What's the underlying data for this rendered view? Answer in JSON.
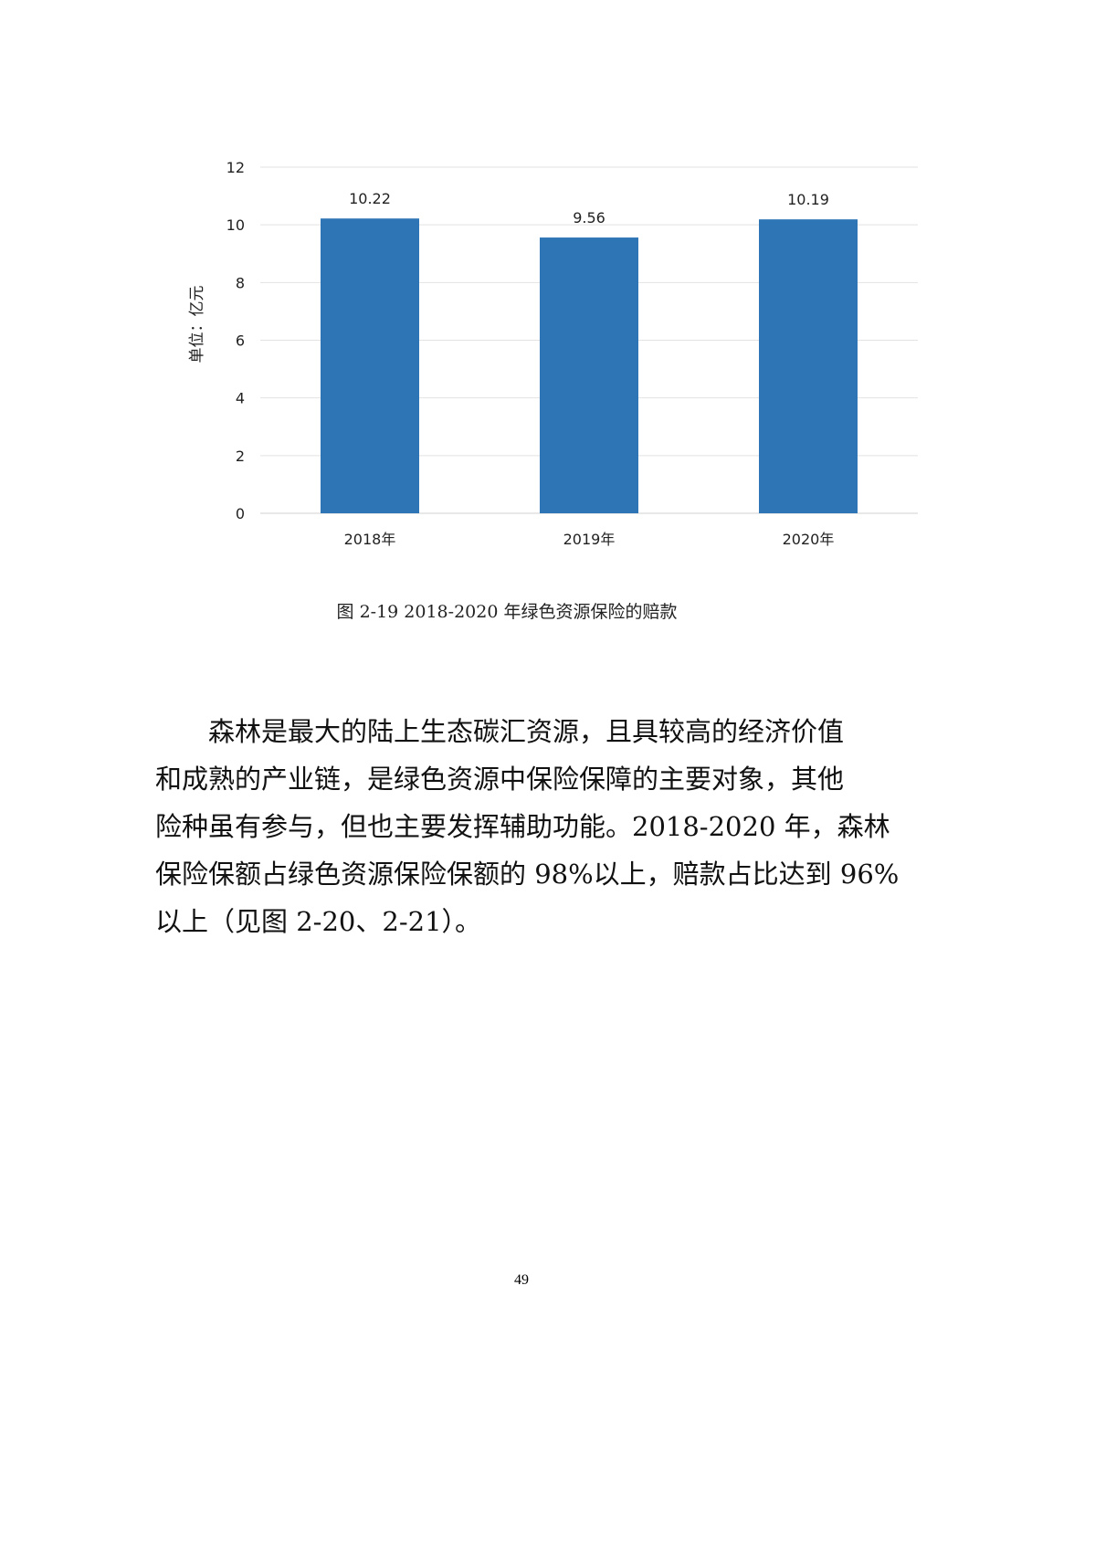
{
  "chart_data": {
    "type": "bar",
    "categories": [
      "2018年",
      "2019年",
      "2020年"
    ],
    "values": [
      10.22,
      9.56,
      10.19
    ],
    "data_labels": [
      "10.22",
      "9.56",
      "10.19"
    ],
    "ylabel": "单位：亿元",
    "xlabel": "",
    "ylim": [
      0,
      12
    ],
    "yticks": [
      "0",
      "2",
      "4",
      "6",
      "8",
      "10",
      "12"
    ],
    "grid": true,
    "bar_color": "#2e75b6"
  },
  "caption": "图 2-19   2018-2020 年绿色资源保险的赔款",
  "paragraph": {
    "lines": [
      "森林是最大的陆上生态碳汇资源，且具较高的经济价值",
      "和成熟的产业链，是绿色资源中保险保障的主要对象，其他",
      "险种虽有参与，但也主要发挥辅助功能。2018-2020 年，森林",
      "保险保额占绿色资源保险保额的 98%以上，赔款占比达到 96%",
      "以上（见图 2-20、2-21）。"
    ]
  },
  "page_number": "49"
}
